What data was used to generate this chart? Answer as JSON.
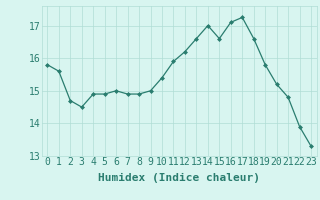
{
  "x": [
    0,
    1,
    2,
    3,
    4,
    5,
    6,
    7,
    8,
    9,
    10,
    11,
    12,
    13,
    14,
    15,
    16,
    17,
    18,
    19,
    20,
    21,
    22,
    23
  ],
  "y": [
    15.8,
    15.6,
    14.7,
    14.5,
    14.9,
    14.9,
    15.0,
    14.9,
    14.9,
    15.0,
    15.4,
    15.9,
    16.2,
    16.6,
    17.0,
    16.6,
    17.1,
    17.25,
    16.6,
    15.8,
    15.2,
    14.8,
    13.9,
    13.3
  ],
  "xlabel": "Humidex (Indice chaleur)",
  "ylim": [
    13,
    17.6
  ],
  "yticks": [
    13,
    14,
    15,
    16,
    17
  ],
  "xticks": [
    0,
    1,
    2,
    3,
    4,
    5,
    6,
    7,
    8,
    9,
    10,
    11,
    12,
    13,
    14,
    15,
    16,
    17,
    18,
    19,
    20,
    21,
    22,
    23
  ],
  "line_color": "#2a7d6f",
  "marker_color": "#2a7d6f",
  "bg_color": "#d8f5f0",
  "grid_color": "#b0ddd5",
  "xlabel_color": "#2a7d6f",
  "tick_color": "#2a7d6f",
  "xlabel_fontsize": 8,
  "tick_fontsize": 7
}
